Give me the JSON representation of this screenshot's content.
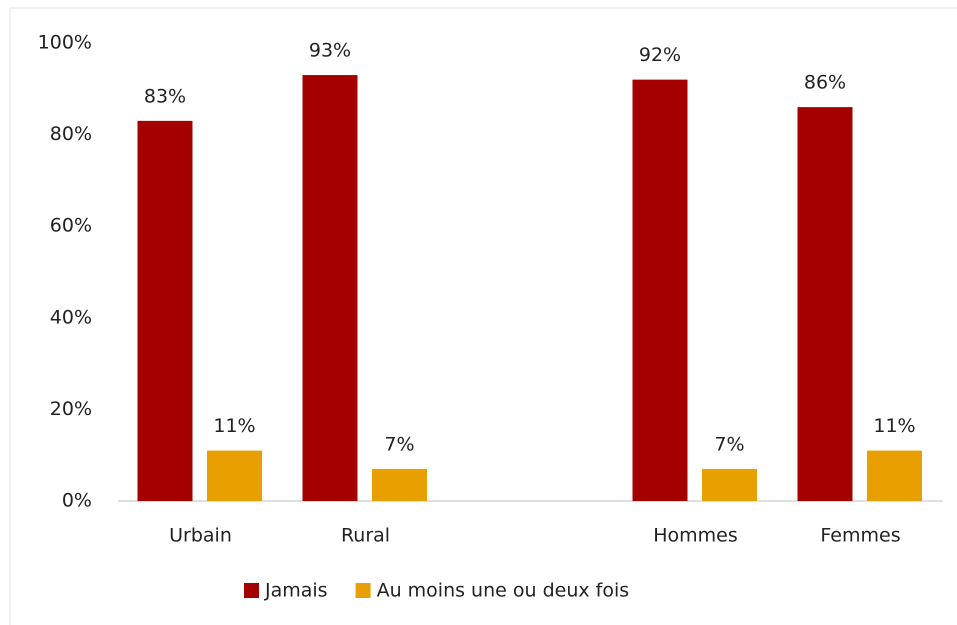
{
  "chart_data": {
    "type": "bar",
    "categories": [
      "Urbain",
      "Rural",
      null,
      "Hommes",
      "Femmes"
    ],
    "series": [
      {
        "name": "Jamais",
        "color": "#a50000",
        "values": [
          83,
          93,
          null,
          92,
          86
        ],
        "value_labels": [
          "83%",
          "93%",
          null,
          "92%",
          "86%"
        ]
      },
      {
        "name": "Au moins une ou deux fois",
        "color": "#e8a000",
        "values": [
          11,
          7,
          null,
          7,
          11
        ],
        "value_labels": [
          "11%",
          "7%",
          null,
          "7%",
          "11%"
        ]
      }
    ],
    "ylim": [
      0,
      100
    ],
    "yticks": [
      {
        "value": 0,
        "label": "0%"
      },
      {
        "value": 20,
        "label": "20%"
      },
      {
        "value": 40,
        "label": "40%"
      },
      {
        "value": 60,
        "label": "60%"
      },
      {
        "value": 80,
        "label": "80%"
      },
      {
        "value": 100,
        "label": "100%"
      }
    ],
    "grid": false,
    "legend": "bottom"
  }
}
